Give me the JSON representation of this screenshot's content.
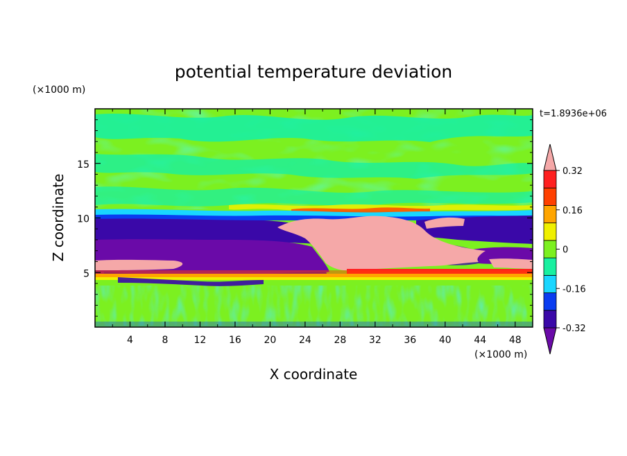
{
  "chart_data": {
    "type": "heatmap",
    "title": "potential temperature deviation",
    "xlabel": "X coordinate",
    "ylabel": "Z coordinate",
    "x_unit": "(×1000 m)",
    "y_unit": "(×1000 m)",
    "time_label": "t=1.8936e+06",
    "xlim": [
      0,
      50
    ],
    "ylim": [
      0,
      20
    ],
    "x_ticks": [
      4,
      8,
      12,
      16,
      20,
      24,
      28,
      32,
      36,
      40,
      44,
      48
    ],
    "y_ticks": [
      5,
      10,
      15
    ],
    "colorbar": {
      "levels": [
        -0.4,
        -0.32,
        -0.24,
        -0.16,
        -0.08,
        0,
        0.08,
        0.16,
        0.24,
        0.32,
        0.4
      ],
      "tick_labels": [
        "0.32",
        "0.16",
        "0",
        "-0.16",
        "-0.32"
      ],
      "tick_values": [
        0.32,
        0.16,
        0,
        -0.16,
        -0.32
      ],
      "colors": [
        "#6a0aa8",
        "#3a08a8",
        "#0a3cf0",
        "#19d6ff",
        "#19f0a0",
        "#7cf020",
        "#f0f000",
        "#ffa500",
        "#ff4000",
        "#ff2020",
        "#f5a8a8"
      ],
      "extend": "both"
    }
  }
}
